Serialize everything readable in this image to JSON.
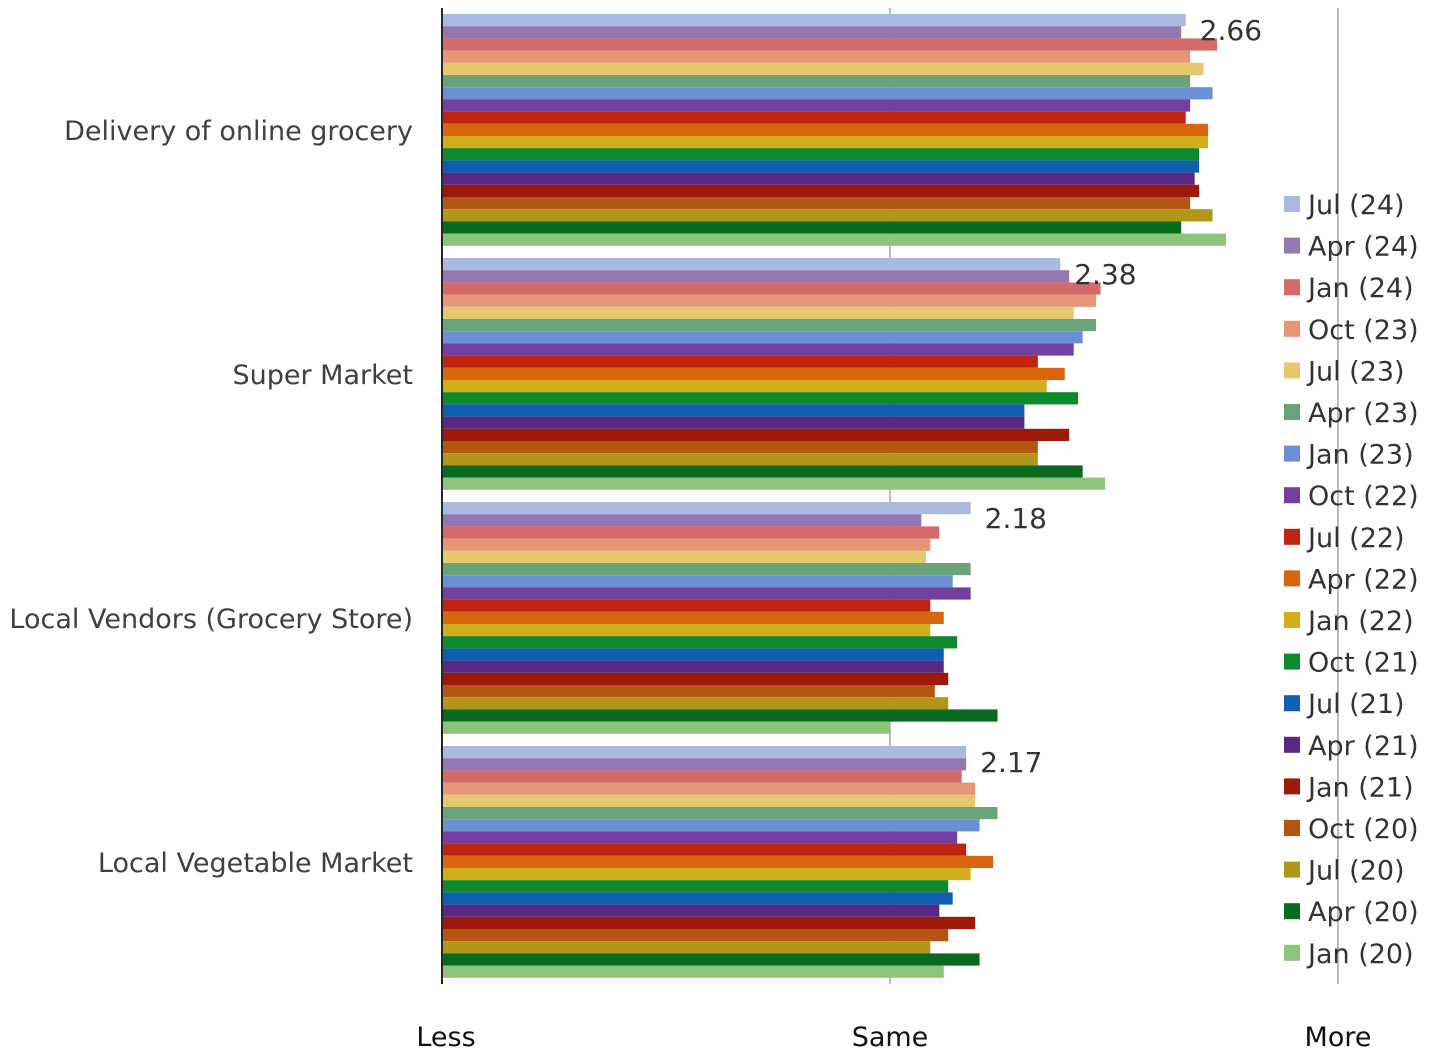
{
  "chart_data": {
    "type": "bar",
    "orientation": "horizontal",
    "categories": [
      "Delivery of online grocery",
      "Super Market",
      "Local Vendors (Grocery Store)",
      "Local Vegetable Market"
    ],
    "xlim": [
      1,
      3
    ],
    "x_ticks": [
      {
        "value": 1,
        "label": "Less"
      },
      {
        "value": 2,
        "label": "Same"
      },
      {
        "value": 3,
        "label": "More"
      }
    ],
    "grid": "vertical",
    "legend_position": "right",
    "data_labels": [
      {
        "category_index": 0,
        "text": "2.66"
      },
      {
        "category_index": 1,
        "text": "2.38"
      },
      {
        "category_index": 2,
        "text": "2.18"
      },
      {
        "category_index": 3,
        "text": "2.17"
      }
    ],
    "series": [
      {
        "name": "Jul (24)",
        "color": "#a9b9e0",
        "values": [
          2.66,
          2.38,
          2.18,
          2.17
        ]
      },
      {
        "name": "Apr (24)",
        "color": "#9478b4",
        "values": [
          2.65,
          2.4,
          2.07,
          2.17
        ]
      },
      {
        "name": "Jan (24)",
        "color": "#d46a6a",
        "values": [
          2.73,
          2.47,
          2.11,
          2.16
        ]
      },
      {
        "name": "Oct (23)",
        "color": "#e69575",
        "values": [
          2.67,
          2.46,
          2.09,
          2.19
        ]
      },
      {
        "name": "Jul (23)",
        "color": "#e5c76e",
        "values": [
          2.7,
          2.41,
          2.08,
          2.19
        ]
      },
      {
        "name": "Apr (23)",
        "color": "#6aa27a",
        "values": [
          2.67,
          2.46,
          2.18,
          2.24
        ]
      },
      {
        "name": "Jan (23)",
        "color": "#6b8fd4",
        "values": [
          2.72,
          2.43,
          2.14,
          2.2
        ]
      },
      {
        "name": "Oct (22)",
        "color": "#7340a0",
        "values": [
          2.67,
          2.41,
          2.18,
          2.15
        ]
      },
      {
        "name": "Jul (22)",
        "color": "#c02410",
        "values": [
          2.66,
          2.33,
          2.09,
          2.17
        ]
      },
      {
        "name": "Apr (22)",
        "color": "#d9660f",
        "values": [
          2.71,
          2.39,
          2.12,
          2.23
        ]
      },
      {
        "name": "Jan (22)",
        "color": "#d2ad1c",
        "values": [
          2.71,
          2.35,
          2.09,
          2.18
        ]
      },
      {
        "name": "Oct (21)",
        "color": "#0d8a2c",
        "values": [
          2.69,
          2.42,
          2.15,
          2.13
        ]
      },
      {
        "name": "Jul (21)",
        "color": "#0d5fb0",
        "values": [
          2.69,
          2.3,
          2.12,
          2.14
        ]
      },
      {
        "name": "Apr (21)",
        "color": "#582a86",
        "values": [
          2.68,
          2.3,
          2.12,
          2.11
        ]
      },
      {
        "name": "Jan (21)",
        "color": "#9e1a08",
        "values": [
          2.69,
          2.4,
          2.13,
          2.19
        ]
      },
      {
        "name": "Oct (20)",
        "color": "#b45510",
        "values": [
          2.67,
          2.33,
          2.1,
          2.13
        ]
      },
      {
        "name": "Jul (20)",
        "color": "#b2961a",
        "values": [
          2.72,
          2.33,
          2.13,
          2.09
        ]
      },
      {
        "name": "Apr (20)",
        "color": "#086b1e",
        "values": [
          2.65,
          2.43,
          2.24,
          2.2
        ]
      },
      {
        "name": "Jan (20)",
        "color": "#8cc47a",
        "values": [
          2.75,
          2.48,
          2.0,
          2.12
        ]
      }
    ]
  }
}
